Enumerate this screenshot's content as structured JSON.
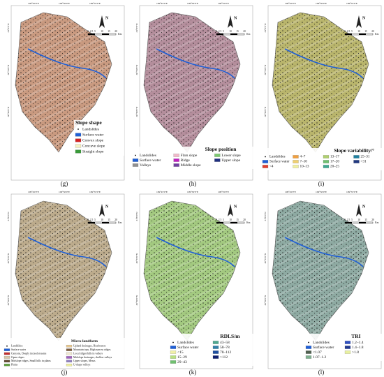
{
  "map_labels": {
    "lon": [
      "109°45'0\"E",
      "109°50'0\"E",
      "109°55'0\"E"
    ],
    "lat": [
      "31°0'0\"N",
      "30°55'0\"N",
      "30°50'0\"N"
    ],
    "scale": [
      "0",
      "2.5",
      "5",
      "10",
      "15",
      "20"
    ],
    "unit": "Km",
    "north": "N"
  },
  "panels": [
    {
      "label": "(g)",
      "fill": "#c99a80",
      "legend": {
        "title": "Slope shape",
        "items": [
          {
            "name": "Landslides",
            "color": "#000000"
          },
          {
            "name": "Surface water",
            "color": "#1f5fd6"
          },
          {
            "name": "Convex slope",
            "color": "#d42020"
          },
          {
            "name": "Concave slope",
            "color": "#f5f0c0"
          },
          {
            "name": "Straight slope",
            "color": "#3a9a3a"
          }
        ]
      }
    },
    {
      "label": "(h)",
      "fill": "#b48e9c",
      "legend": {
        "title": "Slope position",
        "items": [
          {
            "name": "Landslides",
            "color": "#000000"
          },
          {
            "name": "Flats slope",
            "color": "#f0b8c8"
          },
          {
            "name": "Lower slope",
            "color": "#7cc870"
          },
          {
            "name": "Surface water",
            "color": "#1f5fd6"
          },
          {
            "name": "Ridge",
            "color": "#c020c0"
          },
          {
            "name": "Upper slope",
            "color": "#203080"
          },
          {
            "name": "Valleys",
            "color": "#909090"
          },
          {
            "name": "Middle slope",
            "color": "#7040a0"
          }
        ]
      }
    },
    {
      "label": "(i)",
      "fill": "#b9b56c",
      "legend": {
        "title": "Slope variability/°",
        "items": [
          {
            "name": "Landslides",
            "color": "#000000"
          },
          {
            "name": "4–7",
            "color": "#f0a040"
          },
          {
            "name": "13–17",
            "color": "#b0d070"
          },
          {
            "name": "25–31",
            "color": "#2080a0"
          },
          {
            "name": "Surface water",
            "color": "#1f5fd6"
          },
          {
            "name": "7–10",
            "color": "#f0d070"
          },
          {
            "name": "17–20",
            "color": "#70c070"
          },
          {
            "name": ">31",
            "color": "#203880"
          },
          {
            "name": "<4",
            "color": "#e04030"
          },
          {
            "name": "10–13",
            "color": "#f0f0a0"
          },
          {
            "name": "20–25",
            "color": "#40a890"
          }
        ]
      }
    },
    {
      "label": "(j)",
      "fill": "#bcab8c",
      "legend": {
        "title": "Micro-landform",
        "items": [
          {
            "name": "Landslides",
            "color": "#000000"
          },
          {
            "name": "Upland drainages, Headwaters",
            "color": "#e8c890"
          },
          {
            "name": "Surface water",
            "color": "#1f5fd6"
          },
          {
            "name": "Mountain tops, High narrow ridges",
            "color": "#806040"
          },
          {
            "name": "Canyons, Deeply incised streams",
            "color": "#c03030"
          },
          {
            "name": "Local ridges/hills in valleys",
            "color": "#f0e8d0"
          },
          {
            "name": "Open slopes",
            "color": "#d8c8a8"
          },
          {
            "name": "Midslope drainages, shallow valleys",
            "color": "#a060c0"
          },
          {
            "name": "Midslope ridges, Small hills in plains",
            "color": "#604830"
          },
          {
            "name": "Upper slopes, Mesas",
            "color": "#9080c0"
          },
          {
            "name": "Plains",
            "color": "#60a040"
          },
          {
            "name": "U-shape valleys",
            "color": "#f0f0a0"
          }
        ]
      }
    },
    {
      "label": "(k)",
      "fill": "#a3c980",
      "legend": {
        "title": "RDLS/m",
        "items": [
          {
            "name": "Landslides",
            "color": "#000000"
          },
          {
            "name": "43–58",
            "color": "#50a890"
          },
          {
            "name": "Surface water",
            "color": "#1f5fd6"
          },
          {
            "name": "58–78",
            "color": "#3080a8"
          },
          {
            "name": "<15",
            "color": "#f0f0a8"
          },
          {
            "name": "78–112",
            "color": "#2050a0"
          },
          {
            "name": "15–29",
            "color": "#b8e080"
          },
          {
            "name": ">112",
            "color": "#102070"
          },
          {
            "name": "29–43",
            "color": "#70c070"
          }
        ]
      }
    },
    {
      "label": "(l)",
      "fill": "#8eaaa2",
      "legend": {
        "title": "TRI",
        "items": [
          {
            "name": "Landslides",
            "color": "#000000"
          },
          {
            "name": "1.2–1.4",
            "color": "#3050c0"
          },
          {
            "name": "Surface water",
            "color": "#1f5fd6"
          },
          {
            "name": "1.4–1.8",
            "color": "#203890"
          },
          {
            "name": "<1.07",
            "color": "#506050"
          },
          {
            "name": ">1.8",
            "color": "#e8f0a0"
          },
          {
            "name": "1.07–1.2",
            "color": "#80b090"
          }
        ]
      }
    }
  ]
}
